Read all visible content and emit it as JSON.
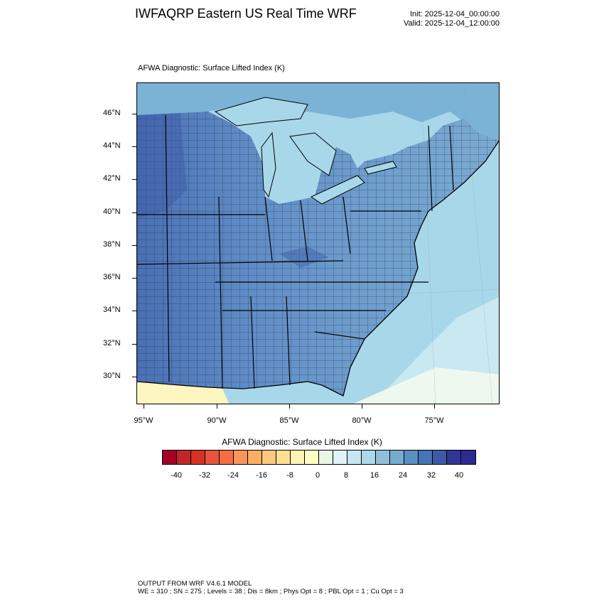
{
  "header": {
    "title": "IWFAQRP Eastern US Real Time WRF",
    "init": "Init: 2025-12-04_00:00:00",
    "valid": "Valid: 2025-12-04_12:00:00"
  },
  "plot": {
    "field_label": "AFWA Diagnostic: Surface Lifted Index   (K)",
    "lat_labels": [
      "46°N",
      "44°N",
      "42°N",
      "40°N",
      "38°N",
      "36°N",
      "34°N",
      "32°N",
      "30°N"
    ],
    "lon_labels": [
      "95°W",
      "90°W",
      "85°W",
      "80°W",
      "75°W"
    ]
  },
  "colorbar": {
    "title": "AFWA Diagnostic: Surface Lifted Index  (K)",
    "tick_labels": [
      "-40",
      "-32",
      "-24",
      "-16",
      "-8",
      "0",
      "8",
      "16",
      "24",
      "32",
      "40"
    ],
    "colors": [
      "#a50026",
      "#c3252d",
      "#d73027",
      "#e8553b",
      "#f46d43",
      "#f9955b",
      "#fdae61",
      "#fec97f",
      "#fee090",
      "#fdf3b3",
      "#ffffbf",
      "#eaf7e4",
      "#e0f3f8",
      "#c6e6f0",
      "#abd9e9",
      "#91bfdb",
      "#74add1",
      "#5a8fc2",
      "#4575b4",
      "#3b5aa8",
      "#313695",
      "#2a2d8f"
    ]
  },
  "footer": {
    "line1": "OUTPUT FROM WRF V4.6.1 MODEL",
    "line2": "WE = 310 ; SN = 275 ; Levels = 38 ; Dis = 8km ; Phys Opt = 8 ; PBL Opt = 1 ; Cu Opt = 3"
  }
}
